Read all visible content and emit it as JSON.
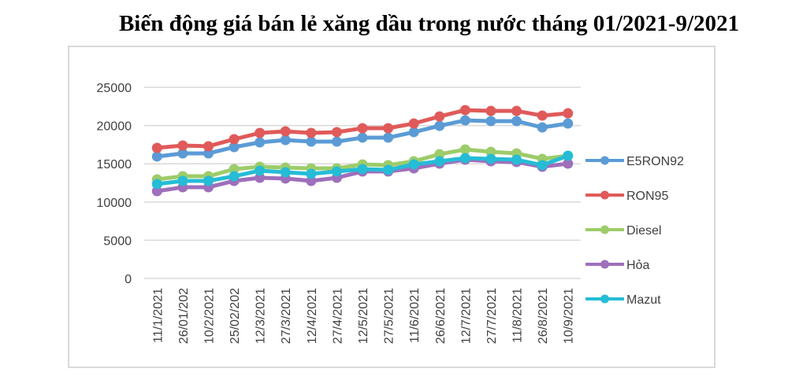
{
  "title": "Biến động giá bán lẻ xăng dầu trong nước tháng 01/2021-9/2021",
  "chart_data": {
    "type": "line",
    "title": "Biến động giá bán lẻ xăng dầu trong nước tháng 01/2021-9/2021",
    "xlabel": "",
    "ylabel": "",
    "ylim": [
      0,
      25000
    ],
    "yticks": [
      0,
      5000,
      10000,
      15000,
      20000,
      25000
    ],
    "grid": true,
    "legend_position": "right",
    "categories": [
      "11/1/2021",
      "26/01/202",
      "10/2/2021",
      "25/02/202",
      "12/3/2021",
      "27/3/2021",
      "12/4/2021",
      "27/4/2021",
      "12/5/2021",
      "27/5/2021",
      "11/6/2021",
      "26/6/2021",
      "12/7/2021",
      "27/7/2021",
      "11/8/2021",
      "26/8/2021",
      "10/9/2021"
    ],
    "series": [
      {
        "name": "E5RON92",
        "color": "#5b9bd5",
        "values": [
          15950,
          16360,
          16360,
          17180,
          17800,
          18110,
          17900,
          17900,
          18420,
          18420,
          19140,
          19960,
          20680,
          20580,
          20580,
          19750,
          20270
        ]
      },
      {
        "name": "RON95",
        "color": "#e05a5a",
        "values": [
          17080,
          17390,
          17290,
          18210,
          19030,
          19240,
          19030,
          19140,
          19650,
          19650,
          20270,
          21190,
          22020,
          21910,
          21910,
          21300,
          21600
        ]
      },
      {
        "name": "Diesel",
        "color": "#9dcc6a",
        "values": [
          12960,
          13370,
          13370,
          14300,
          14610,
          14510,
          14400,
          14400,
          14920,
          14820,
          15330,
          16250,
          16870,
          16560,
          16360,
          15640,
          16050
        ]
      },
      {
        "name": "Hỏa",
        "color": "#9e6fbb",
        "values": [
          11420,
          11930,
          11930,
          12760,
          13170,
          13070,
          12760,
          13170,
          13990,
          13990,
          14400,
          15020,
          15530,
          15330,
          15230,
          14610,
          15020
        ]
      },
      {
        "name": "Mazut",
        "color": "#25bcd6",
        "values": [
          12350,
          12760,
          12760,
          13370,
          14100,
          13890,
          13680,
          13990,
          14300,
          14200,
          14920,
          15330,
          15740,
          15640,
          15530,
          14820,
          16050
        ]
      }
    ]
  }
}
